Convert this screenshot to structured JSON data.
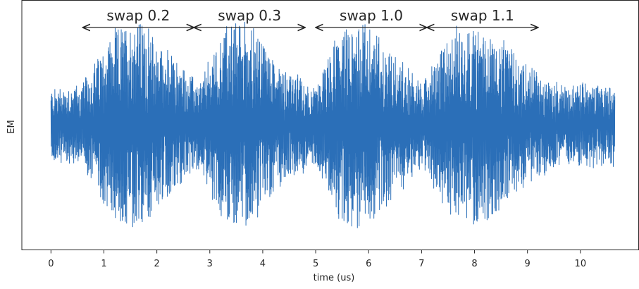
{
  "chart_data": {
    "type": "line",
    "title": "",
    "xlabel": "time (us)",
    "ylabel": "EM",
    "xlim": [
      -0.55,
      11.1
    ],
    "ylim": [
      -1.55,
      1.55
    ],
    "xticks": [
      0,
      1,
      2,
      3,
      4,
      5,
      6,
      7,
      8,
      9,
      10
    ],
    "tick_labels": [
      "0",
      "1",
      "2",
      "3",
      "4",
      "5",
      "6",
      "7",
      "8",
      "9",
      "10"
    ],
    "yticks": [],
    "grid": false,
    "legend": "none",
    "line_color": "#2b6fb8",
    "series": [
      {
        "x_range": [
          0,
          10.65
        ],
        "baseline": 0,
        "envelope": [
          {
            "x": 0.0,
            "amp": 0.45
          },
          {
            "x": 0.6,
            "amp": 0.5
          },
          {
            "x": 1.1,
            "amp": 1.1
          },
          {
            "x": 1.6,
            "amp": 1.35
          },
          {
            "x": 2.2,
            "amp": 0.9
          },
          {
            "x": 2.8,
            "amp": 0.5
          },
          {
            "x": 3.3,
            "amp": 1.25
          },
          {
            "x": 3.7,
            "amp": 1.3
          },
          {
            "x": 4.4,
            "amp": 0.7
          },
          {
            "x": 5.0,
            "amp": 0.45
          },
          {
            "x": 5.4,
            "amp": 1.1
          },
          {
            "x": 5.9,
            "amp": 1.3
          },
          {
            "x": 6.6,
            "amp": 0.8
          },
          {
            "x": 7.0,
            "amp": 0.5
          },
          {
            "x": 7.6,
            "amp": 1.2
          },
          {
            "x": 8.2,
            "amp": 1.2
          },
          {
            "x": 8.9,
            "amp": 0.8
          },
          {
            "x": 9.5,
            "amp": 0.5
          },
          {
            "x": 10.65,
            "amp": 0.5
          }
        ]
      }
    ],
    "annotations": [
      {
        "text": "swap 0.2",
        "x_start": 0.6,
        "x_end": 2.7
      },
      {
        "text": "swap 0.3",
        "x_start": 2.7,
        "x_end": 4.8
      },
      {
        "text": "swap 1.0",
        "x_start": 5.0,
        "x_end": 7.1
      },
      {
        "text": "swap 1.1",
        "x_start": 7.1,
        "x_end": 9.2
      }
    ]
  }
}
